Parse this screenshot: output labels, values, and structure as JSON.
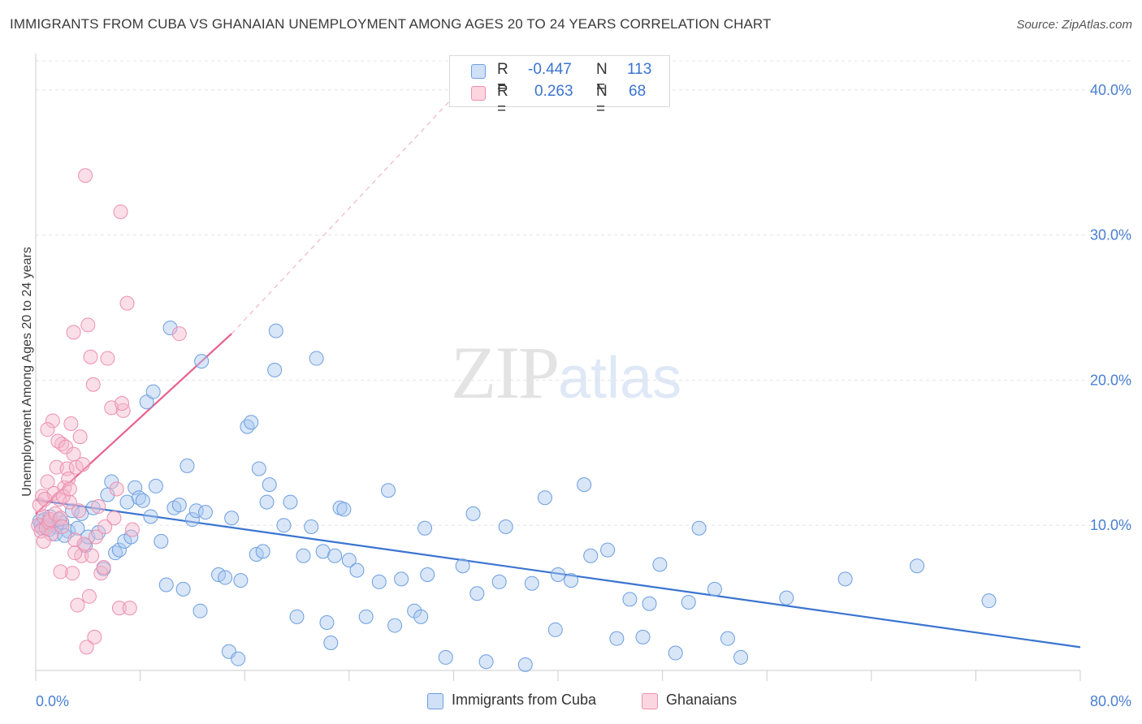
{
  "title": "IMMIGRANTS FROM CUBA VS GHANAIAN UNEMPLOYMENT AMONG AGES 20 TO 24 YEARS CORRELATION CHART",
  "source": "Source: ZipAtlas.com",
  "watermark": {
    "zip": "ZIP",
    "atlas": "atlas"
  },
  "legend": {
    "rows": [
      {
        "r_label": "R =",
        "r_value": "-0.447",
        "n_label": "N =",
        "n_value": "113",
        "color": "#a9c8f0"
      },
      {
        "r_label": "R =",
        "r_value": "0.263",
        "n_label": "N =",
        "n_value": "68",
        "color": "#f5b8cb"
      }
    ]
  },
  "bottom_legend": [
    {
      "label": "Immigrants from Cuba",
      "color": "#a9c8f0"
    },
    {
      "label": "Ghanaians",
      "color": "#f5b8cb"
    }
  ],
  "colors": {
    "blue": "#3a74d0",
    "blue_fill": "#a9c8f0",
    "pink": "#e8608e",
    "pink_fill": "#f5b8cb",
    "tick": "#4a7fd0"
  },
  "chart_data": {
    "type": "scatter",
    "title": "IMMIGRANTS FROM CUBA VS GHANAIAN UNEMPLOYMENT AMONG AGES 20 TO 24 YEARS CORRELATION CHART",
    "xlabel": "",
    "ylabel": "Unemployment Among Ages 20 to 24 years",
    "xlim": [
      0,
      80
    ],
    "ylim": [
      0,
      42
    ],
    "x_tick_labels": [
      "0.0%",
      "80.0%"
    ],
    "y_ticks": [
      10,
      20,
      30,
      40
    ],
    "y_tick_labels": [
      "10.0%",
      "20.0%",
      "30.0%",
      "40.0%"
    ],
    "grid": true,
    "series": [
      {
        "name": "Immigrants from Cuba",
        "points": [
          [
            0.3,
            10.3
          ],
          [
            0.5,
            9.8
          ],
          [
            0.7,
            10.4
          ],
          [
            0.9,
            10.0
          ],
          [
            1.1,
            10.6
          ],
          [
            1.3,
            10.1
          ],
          [
            1.6,
            9.9
          ],
          [
            2.0,
            10.2
          ],
          [
            1.5,
            9.4
          ],
          [
            2.5,
            9.6
          ],
          [
            2.2,
            9.3
          ],
          [
            2.8,
            11.0
          ],
          [
            3.2,
            9.8
          ],
          [
            3.5,
            10.8
          ],
          [
            3.8,
            8.6
          ],
          [
            4.0,
            9.2
          ],
          [
            4.4,
            11.2
          ],
          [
            4.8,
            9.5
          ],
          [
            5.2,
            7.0
          ],
          [
            5.5,
            12.1
          ],
          [
            5.8,
            13.0
          ],
          [
            6.1,
            8.1
          ],
          [
            6.4,
            8.3
          ],
          [
            6.8,
            8.9
          ],
          [
            7.0,
            11.6
          ],
          [
            7.3,
            9.2
          ],
          [
            7.6,
            12.6
          ],
          [
            7.9,
            11.9
          ],
          [
            8.2,
            11.7
          ],
          [
            8.5,
            18.5
          ],
          [
            8.8,
            10.6
          ],
          [
            9.2,
            12.7
          ],
          [
            9.0,
            19.2
          ],
          [
            9.6,
            8.9
          ],
          [
            10.0,
            5.9
          ],
          [
            10.3,
            23.6
          ],
          [
            10.6,
            11.2
          ],
          [
            11.0,
            11.4
          ],
          [
            11.3,
            5.6
          ],
          [
            11.6,
            14.1
          ],
          [
            12.0,
            10.4
          ],
          [
            12.3,
            11.0
          ],
          [
            12.6,
            4.1
          ],
          [
            12.7,
            21.3
          ],
          [
            13.0,
            10.9
          ],
          [
            14.0,
            6.6
          ],
          [
            14.5,
            6.4
          ],
          [
            14.8,
            1.3
          ],
          [
            15.0,
            10.5
          ],
          [
            15.5,
            0.8
          ],
          [
            15.7,
            6.2
          ],
          [
            16.2,
            16.8
          ],
          [
            16.5,
            17.1
          ],
          [
            16.9,
            8.0
          ],
          [
            17.1,
            13.9
          ],
          [
            17.4,
            8.2
          ],
          [
            17.7,
            11.6
          ],
          [
            17.9,
            12.8
          ],
          [
            18.3,
            20.7
          ],
          [
            18.4,
            23.4
          ],
          [
            19.0,
            10.0
          ],
          [
            19.5,
            11.6
          ],
          [
            20.0,
            3.7
          ],
          [
            20.5,
            7.9
          ],
          [
            21.1,
            9.9
          ],
          [
            21.5,
            21.5
          ],
          [
            22.0,
            8.2
          ],
          [
            22.3,
            3.3
          ],
          [
            22.6,
            1.9
          ],
          [
            22.9,
            7.9
          ],
          [
            23.3,
            11.2
          ],
          [
            23.6,
            11.1
          ],
          [
            24.0,
            7.6
          ],
          [
            24.6,
            6.9
          ],
          [
            25.3,
            3.7
          ],
          [
            26.3,
            6.1
          ],
          [
            27.0,
            12.4
          ],
          [
            27.5,
            3.1
          ],
          [
            28.0,
            6.3
          ],
          [
            29.0,
            4.1
          ],
          [
            29.5,
            3.7
          ],
          [
            29.8,
            9.8
          ],
          [
            30.0,
            6.6
          ],
          [
            31.4,
            0.9
          ],
          [
            32.7,
            7.2
          ],
          [
            33.5,
            10.8
          ],
          [
            33.8,
            5.3
          ],
          [
            34.5,
            0.6
          ],
          [
            35.5,
            6.1
          ],
          [
            36.0,
            9.9
          ],
          [
            37.5,
            0.4
          ],
          [
            38.0,
            6.0
          ],
          [
            39.0,
            11.9
          ],
          [
            39.8,
            2.8
          ],
          [
            40.0,
            6.6
          ],
          [
            41.0,
            6.2
          ],
          [
            42.0,
            12.8
          ],
          [
            42.5,
            7.9
          ],
          [
            43.8,
            8.3
          ],
          [
            44.5,
            2.2
          ],
          [
            45.5,
            4.9
          ],
          [
            46.5,
            2.3
          ],
          [
            47.0,
            4.6
          ],
          [
            47.8,
            7.3
          ],
          [
            49.0,
            1.2
          ],
          [
            50.0,
            4.7
          ],
          [
            50.8,
            9.8
          ],
          [
            52.0,
            5.6
          ],
          [
            53.0,
            2.2
          ],
          [
            54.0,
            0.9
          ],
          [
            57.5,
            5.0
          ],
          [
            62.0,
            6.3
          ],
          [
            67.5,
            7.2
          ],
          [
            73.0,
            4.8
          ],
          [
            0.4,
            10.0
          ],
          [
            1.0,
            9.7
          ],
          [
            1.8,
            10.4
          ]
        ]
      },
      {
        "name": "Ghanaians",
        "points": [
          [
            0.2,
            10.0
          ],
          [
            0.4,
            9.6
          ],
          [
            0.6,
            10.6
          ],
          [
            0.8,
            9.8
          ],
          [
            1.0,
            10.2
          ],
          [
            1.2,
            9.4
          ],
          [
            0.5,
            12.0
          ],
          [
            0.9,
            13.0
          ],
          [
            1.4,
            12.2
          ],
          [
            1.6,
            14.0
          ],
          [
            1.8,
            11.8
          ],
          [
            2.0,
            15.6
          ],
          [
            2.2,
            12.6
          ],
          [
            2.4,
            13.9
          ],
          [
            2.6,
            11.6
          ],
          [
            1.3,
            17.2
          ],
          [
            1.7,
            15.8
          ],
          [
            2.1,
            12.0
          ],
          [
            2.3,
            15.4
          ],
          [
            2.5,
            13.2
          ],
          [
            2.7,
            17.0
          ],
          [
            2.9,
            14.9
          ],
          [
            3.1,
            14.0
          ],
          [
            3.3,
            11.0
          ],
          [
            3.5,
            7.9
          ],
          [
            0.3,
            11.4
          ],
          [
            0.7,
            11.8
          ],
          [
            1.1,
            10.4
          ],
          [
            1.5,
            10.8
          ],
          [
            1.9,
            10.5
          ],
          [
            2.6,
            12.5
          ],
          [
            2.8,
            6.7
          ],
          [
            3.0,
            9.0
          ],
          [
            3.2,
            4.5
          ],
          [
            3.4,
            16.1
          ],
          [
            3.6,
            14.2
          ],
          [
            3.8,
            34.1
          ],
          [
            4.0,
            23.8
          ],
          [
            4.2,
            21.6
          ],
          [
            4.4,
            19.7
          ],
          [
            4.6,
            9.2
          ],
          [
            4.8,
            11.3
          ],
          [
            5.0,
            6.7
          ],
          [
            5.2,
            7.1
          ],
          [
            5.5,
            21.5
          ],
          [
            5.8,
            18.1
          ],
          [
            6.0,
            10.5
          ],
          [
            6.2,
            12.5
          ],
          [
            6.5,
            31.6
          ],
          [
            6.7,
            17.9
          ],
          [
            7.0,
            25.3
          ],
          [
            4.3,
            7.9
          ],
          [
            3.7,
            8.7
          ],
          [
            4.1,
            5.1
          ],
          [
            4.5,
            2.3
          ],
          [
            2.9,
            23.3
          ],
          [
            3.9,
            1.6
          ],
          [
            5.3,
            9.9
          ],
          [
            6.4,
            4.3
          ],
          [
            7.2,
            4.3
          ],
          [
            11.0,
            23.2
          ],
          [
            6.6,
            18.4
          ],
          [
            7.4,
            9.7
          ],
          [
            0.6,
            8.9
          ],
          [
            1.9,
            6.8
          ],
          [
            0.9,
            16.6
          ],
          [
            2.0,
            9.9
          ],
          [
            3.0,
            8.1
          ]
        ]
      }
    ],
    "trendlines": [
      {
        "series": "Immigrants from Cuba",
        "from": [
          0,
          11.75
        ],
        "to": [
          80,
          1.6
        ],
        "style": "solid"
      },
      {
        "series": "Ghanaians",
        "from": [
          0,
          10.8
        ],
        "to": [
          15,
          23.2
        ],
        "style": "solid"
      },
      {
        "series": "Ghanaians",
        "from": [
          15,
          23.2
        ],
        "to": [
          32.5,
          40.0
        ],
        "style": "dashed"
      }
    ]
  }
}
